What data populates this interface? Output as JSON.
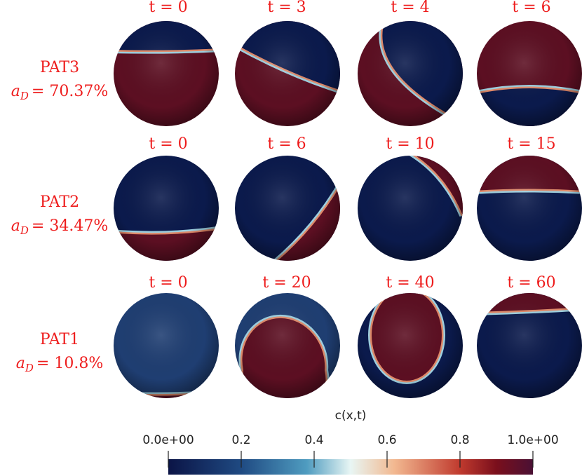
{
  "rows": [
    {
      "name": "PAT3",
      "area": {
        "symbol": "a",
        "subscript": "D",
        "value": "= 70.37%"
      },
      "times": [
        "t = 0",
        "t = 3",
        "t = 4",
        "t = 6"
      ]
    },
    {
      "name": "PAT2",
      "area": {
        "symbol": "a",
        "subscript": "D",
        "value": "= 34.47%"
      },
      "times": [
        "t = 0",
        "t = 6",
        "t = 10",
        "t = 15"
      ]
    },
    {
      "name": "PAT1",
      "area": {
        "symbol": "a",
        "subscript": "D",
        "value": "= 10.8%"
      },
      "times": [
        "t = 0",
        "t = 20",
        "t = 40",
        "t = 60"
      ]
    }
  ],
  "colorbar": {
    "title": "c(x,t)",
    "lim": [
      0,
      1
    ],
    "ticks": [
      {
        "value": 0,
        "label": "0.0e+00"
      },
      0.2,
      0.4,
      0.6,
      0.8,
      {
        "value": 1,
        "label": "1.0e+00"
      }
    ]
  }
}
